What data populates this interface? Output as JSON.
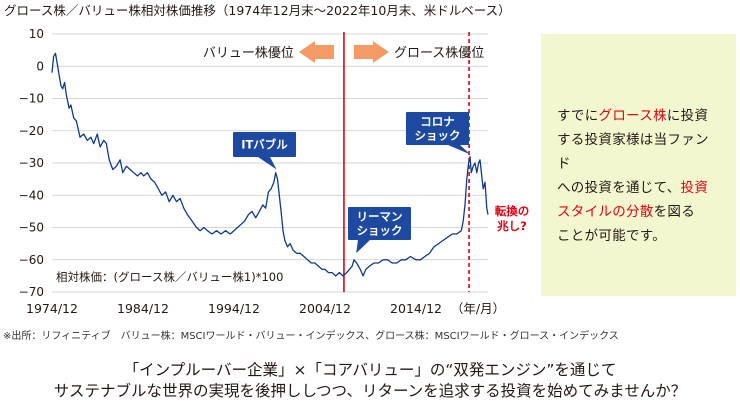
{
  "chart_data": {
    "type": "line",
    "title": "グロース株／バリュー株相対株価推移（1974年12月末〜2022年10月末、米ドルベース）",
    "ylim": [
      -70,
      10
    ],
    "yticks": [
      "10",
      "0",
      "−10",
      "−20",
      "−30",
      "−40",
      "−50",
      "−60",
      "−70"
    ],
    "xlim": [
      1974.92,
      2022.83
    ],
    "xticks": [
      {
        "label": "1974/12",
        "x": 1974.92
      },
      {
        "label": "1984/12",
        "x": 1984.92
      },
      {
        "label": "1994/12",
        "x": 1994.92
      },
      {
        "label": "2004/12",
        "x": 2004.92
      },
      {
        "label": "2014/12",
        "x": 2014.92
      }
    ],
    "x_unit_label": "（年/月）",
    "series_label": "相対株価：(グロース株／バリュー株1)*100",
    "series": [
      {
        "color": "#0f3a8c",
        "points": [
          [
            1974.92,
            -2
          ],
          [
            1975.1,
            3
          ],
          [
            1975.3,
            4
          ],
          [
            1975.6,
            -1
          ],
          [
            1975.9,
            -6
          ],
          [
            1976.1,
            -7
          ],
          [
            1976.3,
            -5
          ],
          [
            1976.5,
            -9
          ],
          [
            1976.8,
            -13
          ],
          [
            1977.0,
            -12
          ],
          [
            1977.3,
            -16
          ],
          [
            1977.6,
            -17
          ],
          [
            1978.0,
            -22
          ],
          [
            1978.4,
            -21
          ],
          [
            1978.8,
            -23
          ],
          [
            1979.2,
            -22
          ],
          [
            1979.5,
            -24
          ],
          [
            1979.9,
            -21
          ],
          [
            1980.2,
            -25
          ],
          [
            1980.6,
            -23
          ],
          [
            1980.9,
            -24
          ],
          [
            1981.2,
            -29
          ],
          [
            1981.6,
            -32
          ],
          [
            1982.0,
            -31
          ],
          [
            1982.4,
            -29
          ],
          [
            1982.7,
            -33
          ],
          [
            1983.1,
            -31
          ],
          [
            1983.5,
            -32
          ],
          [
            1983.9,
            -33
          ],
          [
            1984.3,
            -34
          ],
          [
            1984.7,
            -33
          ],
          [
            1985.0,
            -34
          ],
          [
            1985.4,
            -33
          ],
          [
            1985.8,
            -35
          ],
          [
            1986.2,
            -36
          ],
          [
            1986.6,
            -38
          ],
          [
            1987.0,
            -40
          ],
          [
            1987.4,
            -39
          ],
          [
            1987.8,
            -42
          ],
          [
            1988.2,
            -40
          ],
          [
            1988.6,
            -42
          ],
          [
            1989.0,
            -41
          ],
          [
            1989.4,
            -44
          ],
          [
            1989.8,
            -46
          ],
          [
            1990.3,
            -48
          ],
          [
            1990.8,
            -50
          ],
          [
            1991.2,
            -51
          ],
          [
            1991.6,
            -50
          ],
          [
            1992.0,
            -51
          ],
          [
            1992.5,
            -52
          ],
          [
            1993.0,
            -51
          ],
          [
            1993.5,
            -52
          ],
          [
            1994.0,
            -51
          ],
          [
            1994.5,
            -52
          ],
          [
            1994.92,
            -51
          ],
          [
            1995.3,
            -50
          ],
          [
            1995.7,
            -49
          ],
          [
            1996.1,
            -48
          ],
          [
            1996.5,
            -46
          ],
          [
            1996.9,
            -45
          ],
          [
            1997.3,
            -47
          ],
          [
            1997.7,
            -45
          ],
          [
            1998.1,
            -43
          ],
          [
            1998.4,
            -44
          ],
          [
            1998.7,
            -39
          ],
          [
            1999.0,
            -38
          ],
          [
            1999.3,
            -36
          ],
          [
            1999.5,
            -33
          ],
          [
            1999.7,
            -35
          ],
          [
            1999.9,
            -40
          ],
          [
            2000.1,
            -45
          ],
          [
            2000.3,
            -51
          ],
          [
            2000.5,
            -54
          ],
          [
            2000.8,
            -56
          ],
          [
            2001.1,
            -55
          ],
          [
            2001.4,
            -57
          ],
          [
            2001.8,
            -58
          ],
          [
            2002.2,
            -58
          ],
          [
            2002.6,
            -59
          ],
          [
            2003.0,
            -60
          ],
          [
            2003.4,
            -61
          ],
          [
            2003.8,
            -61
          ],
          [
            2004.2,
            -62
          ],
          [
            2004.6,
            -63
          ],
          [
            2004.92,
            -63
          ],
          [
            2005.3,
            -64
          ],
          [
            2005.7,
            -64
          ],
          [
            2006.1,
            -65
          ],
          [
            2006.5,
            -64
          ],
          [
            2006.9,
            -65
          ],
          [
            2007.3,
            -64
          ],
          [
            2007.6,
            -63
          ],
          [
            2007.9,
            -62
          ],
          [
            2008.1,
            -60
          ],
          [
            2008.4,
            -61
          ],
          [
            2008.8,
            -63
          ],
          [
            2009.1,
            -65
          ],
          [
            2009.4,
            -63
          ],
          [
            2009.8,
            -62
          ],
          [
            2010.3,
            -61
          ],
          [
            2010.8,
            -61
          ],
          [
            2011.3,
            -60
          ],
          [
            2011.8,
            -60
          ],
          [
            2012.3,
            -61
          ],
          [
            2012.8,
            -61
          ],
          [
            2013.3,
            -60
          ],
          [
            2013.8,
            -60
          ],
          [
            2014.3,
            -59
          ],
          [
            2014.92,
            -60
          ],
          [
            2015.4,
            -60
          ],
          [
            2015.9,
            -59
          ],
          [
            2016.4,
            -58
          ],
          [
            2016.9,
            -56
          ],
          [
            2017.4,
            -55
          ],
          [
            2017.9,
            -54
          ],
          [
            2018.4,
            -53
          ],
          [
            2018.9,
            -52
          ],
          [
            2019.4,
            -52
          ],
          [
            2019.9,
            -51
          ],
          [
            2020.1,
            -48
          ],
          [
            2020.3,
            -43
          ],
          [
            2020.5,
            -35
          ],
          [
            2020.7,
            -30
          ],
          [
            2020.85,
            -28
          ],
          [
            2021.0,
            -33
          ],
          [
            2021.2,
            -31
          ],
          [
            2021.4,
            -30
          ],
          [
            2021.6,
            -33
          ],
          [
            2021.8,
            -30
          ],
          [
            2021.95,
            -29
          ],
          [
            2022.1,
            -33
          ],
          [
            2022.3,
            -38
          ],
          [
            2022.5,
            -36
          ],
          [
            2022.7,
            -44
          ],
          [
            2022.83,
            -46
          ]
        ]
      }
    ],
    "divider_lines": [
      {
        "x": 2007.0,
        "color": "#e60012",
        "style": "solid"
      },
      {
        "x": 2020.75,
        "color": "#e60012",
        "style": "dashed"
      }
    ],
    "annotations": [
      {
        "text": "バリュー株優位",
        "arrow": "left"
      },
      {
        "text": "グロース株優位",
        "arrow": "right"
      },
      {
        "lines": [
          "ITバブル"
        ],
        "x": 1999.6,
        "y": -32
      },
      {
        "lines": [
          "リーマン",
          "ショック"
        ],
        "x": 2009.0,
        "y": -58
      },
      {
        "lines": [
          "コロナ",
          "ショック"
        ],
        "x": 2020.9,
        "y": -28
      },
      {
        "lines": [
          "転換の",
          "兆し?"
        ],
        "color": "#e60012"
      }
    ],
    "grid": "horizontal"
  },
  "panel": {
    "t1": "すでに",
    "e1": "グロース株",
    "t2": "に投資",
    "t3": "する投資家様は当ファンド",
    "t4": "への投資を通じて、",
    "e2": "投資",
    "e3": "スタイルの分散",
    "t5": "を図る",
    "t6": "ことが可能です。"
  },
  "source": "※出所：リフィニティブ　バリュー株：MSCIワールド・バリュー・インデックス、グロース株：MSCIワールド・グロース・インデックス",
  "footer": {
    "line1": "「インプルーバー企業」×「コアバリュー」の“双発エンジン”を通じて",
    "line2": "サステナブルな世界の実現を後押ししつつ、リターンを追求する投資を始めてみませんか？"
  }
}
